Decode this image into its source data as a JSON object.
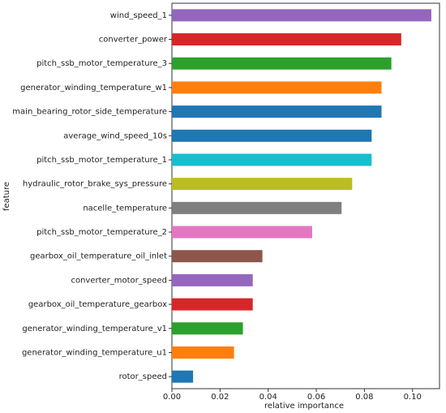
{
  "chart_data": {
    "type": "barh",
    "xlabel": "relative importance",
    "ylabel": "feature",
    "categories": [
      "wind_speed_1",
      "converter_power",
      "pitch_ssb_motor_temperature_3",
      "generator_winding_temperature_w1",
      "main_bearing_rotor_side_temperature",
      "average_wind_speed_10s",
      "pitch_ssb_motor_temperature_1",
      "hydraulic_rotor_brake_sys_pressure",
      "nacelle_temperature",
      "pitch_ssb_motor_temperature_2",
      "gearbox_oil_temperature_oil_inlet",
      "converter_motor_speed",
      "gearbox_oil_temperature_gearbox",
      "generator_winding_temperature_v1",
      "generator_winding_temperature_u1",
      "rotor_speed"
    ],
    "values": [
      0.1078,
      0.0953,
      0.0912,
      0.0871,
      0.0871,
      0.083,
      0.083,
      0.0749,
      0.0705,
      0.0583,
      0.0376,
      0.0336,
      0.0336,
      0.0295,
      0.0258,
      0.0088
    ],
    "colors": [
      "#9467bd",
      "#d62728",
      "#2ca02c",
      "#ff7f0e",
      "#1f77b4",
      "#1f77b4",
      "#17becf",
      "#bcbd22",
      "#7f7f7f",
      "#e377c2",
      "#8c564b",
      "#9467bd",
      "#d62728",
      "#2ca02c",
      "#ff7f0e",
      "#1f77b4"
    ],
    "xlim": [
      0,
      0.1112
    ],
    "xticks": [
      {
        "value": 0,
        "label": "0.00"
      },
      {
        "value": 0.02,
        "label": "0.02"
      },
      {
        "value": 0.04,
        "label": "0.04"
      },
      {
        "value": 0.06,
        "label": "0.06"
      },
      {
        "value": 0.08,
        "label": "0.08"
      },
      {
        "value": 0.1,
        "label": "0.10"
      }
    ]
  }
}
